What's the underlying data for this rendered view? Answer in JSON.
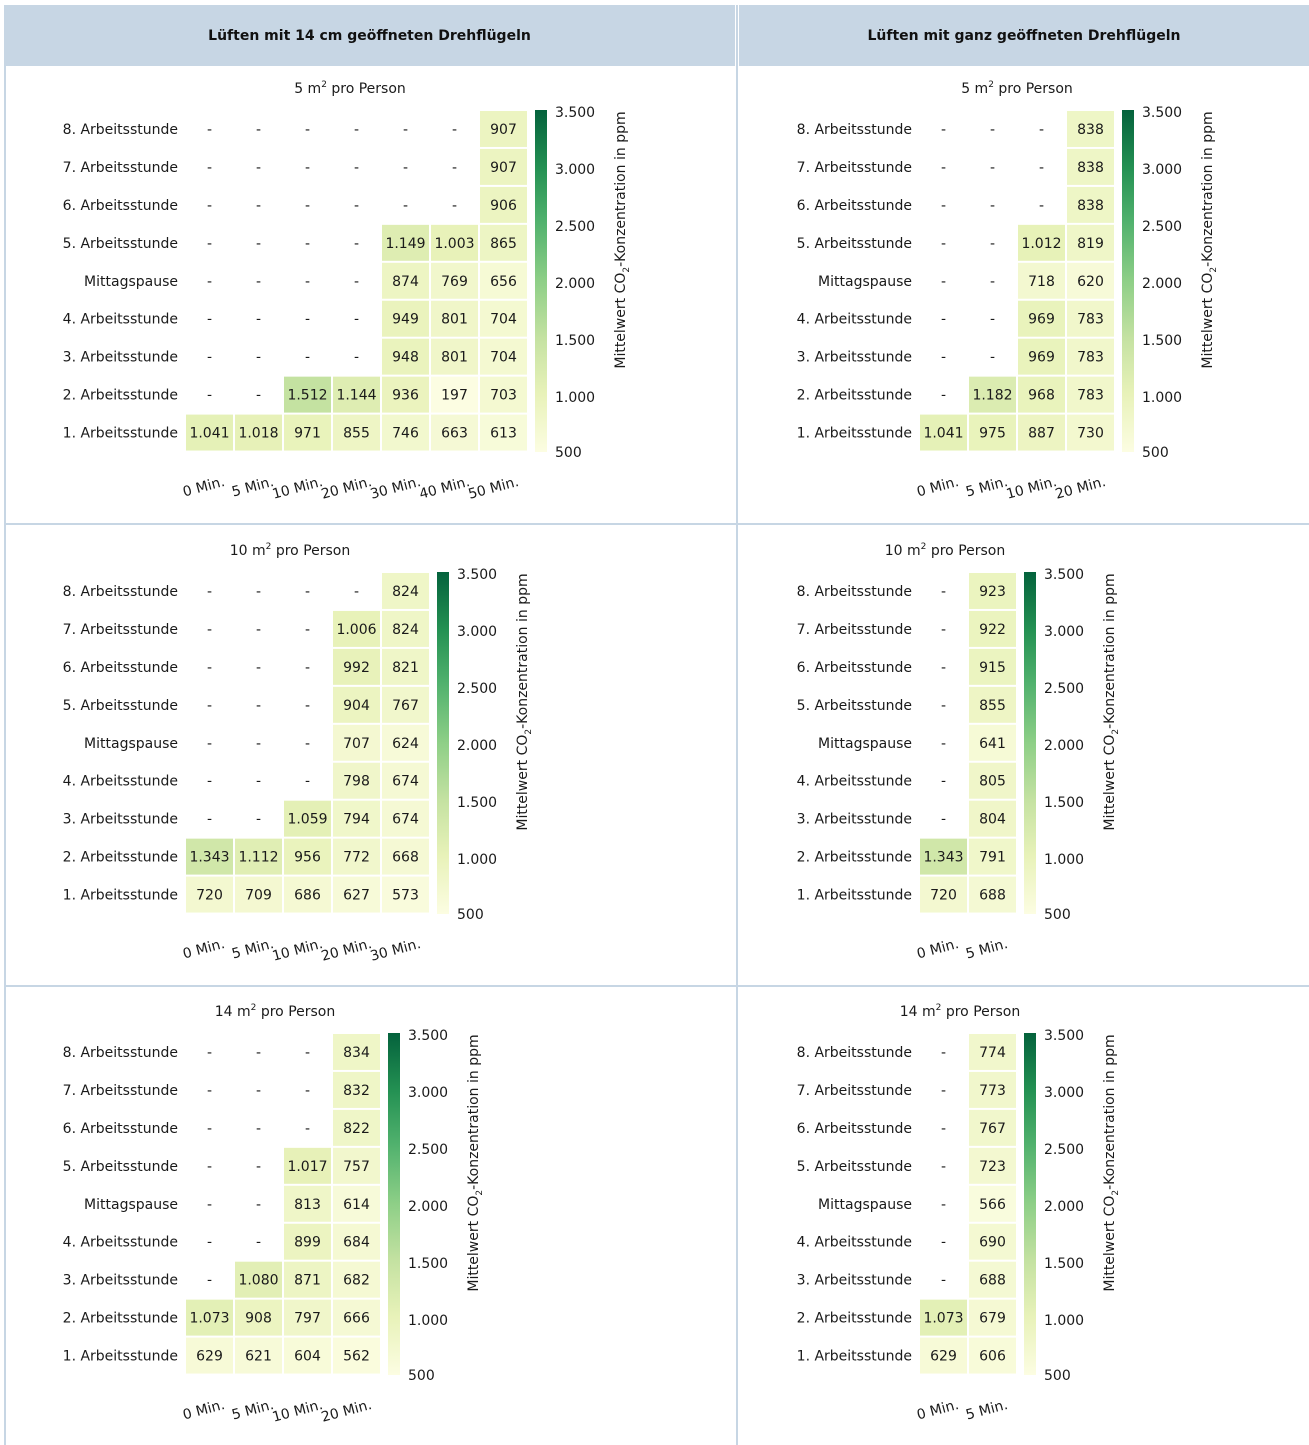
{
  "header": {
    "left": "Lüften mit 14 cm geöffneten Drehflügeln",
    "right": "Lüften mit ganz geöffneten Drehflügeln"
  },
  "row_labels": [
    "8. Arbeitsstunde",
    "7. Arbeitsstunde",
    "6. Arbeitsstunde",
    "5. Arbeitsstunde",
    "Mittagspause",
    "4. Arbeitsstunde",
    "3. Arbeitsstunde",
    "2. Arbeitsstunde",
    "1. Arbeitsstunde"
  ],
  "colorbar": {
    "label": "Mittelwert CO₂-Konzentration in ppm",
    "ticks": [
      3500,
      3000,
      2500,
      2000,
      1500,
      1000,
      500
    ],
    "tick_labels": [
      "3.500",
      "3.000",
      "2.500",
      "2.000",
      "1.500",
      "1.000",
      "500"
    ],
    "range": [
      500,
      3500
    ],
    "colors": [
      "#fcfde2",
      "#e8f2b9",
      "#c5e2a2",
      "#8ecf87",
      "#52b26e",
      "#249153",
      "#04623c"
    ]
  },
  "missing_symbol": "-",
  "chart_data": [
    {
      "type": "heatmap",
      "title": "5 m² pro Person",
      "group": "Lüften mit 14 cm geöffneten Drehflügeln",
      "x": [
        "0 Min.",
        "5 Min.",
        "10 Min.",
        "20 Min.",
        "30 Min.",
        "40 Min.",
        "50 Min."
      ],
      "y": [
        "8. Arbeitsstunde",
        "7. Arbeitsstunde",
        "6. Arbeitsstunde",
        "5. Arbeitsstunde",
        "Mittagspause",
        "4. Arbeitsstunde",
        "3. Arbeitsstunde",
        "2. Arbeitsstunde",
        "1. Arbeitsstunde"
      ],
      "values": [
        [
          null,
          null,
          null,
          null,
          null,
          null,
          907
        ],
        [
          null,
          null,
          null,
          null,
          null,
          null,
          907
        ],
        [
          null,
          null,
          null,
          null,
          null,
          null,
          906
        ],
        [
          null,
          null,
          null,
          null,
          1149,
          1003,
          865
        ],
        [
          null,
          null,
          null,
          null,
          874,
          769,
          656
        ],
        [
          null,
          null,
          null,
          null,
          949,
          801,
          704
        ],
        [
          null,
          null,
          null,
          null,
          948,
          801,
          704
        ],
        [
          null,
          null,
          1512,
          1144,
          936,
          197,
          703
        ],
        [
          1041,
          1018,
          971,
          855,
          746,
          663,
          613
        ]
      ]
    },
    {
      "type": "heatmap",
      "title": "5 m² pro Person",
      "group": "Lüften mit ganz geöffneten Drehflügeln",
      "x": [
        "0 Min.",
        "5 Min.",
        "10 Min.",
        "20 Min."
      ],
      "y": [
        "8. Arbeitsstunde",
        "7. Arbeitsstunde",
        "6. Arbeitsstunde",
        "5. Arbeitsstunde",
        "Mittagspause",
        "4. Arbeitsstunde",
        "3. Arbeitsstunde",
        "2. Arbeitsstunde",
        "1. Arbeitsstunde"
      ],
      "values": [
        [
          null,
          null,
          null,
          838
        ],
        [
          null,
          null,
          null,
          838
        ],
        [
          null,
          null,
          null,
          838
        ],
        [
          null,
          null,
          1012,
          819
        ],
        [
          null,
          null,
          718,
          620
        ],
        [
          null,
          null,
          969,
          783
        ],
        [
          null,
          null,
          969,
          783
        ],
        [
          null,
          1182,
          968,
          783
        ],
        [
          1041,
          975,
          887,
          730
        ]
      ]
    },
    {
      "type": "heatmap",
      "title": "10 m² pro Person",
      "group": "Lüften mit 14 cm geöffneten Drehflügeln",
      "x": [
        "0 Min.",
        "5 Min.",
        "10 Min.",
        "20 Min.",
        "30 Min."
      ],
      "y": [
        "8. Arbeitsstunde",
        "7. Arbeitsstunde",
        "6. Arbeitsstunde",
        "5. Arbeitsstunde",
        "Mittagspause",
        "4. Arbeitsstunde",
        "3. Arbeitsstunde",
        "2. Arbeitsstunde",
        "1. Arbeitsstunde"
      ],
      "values": [
        [
          null,
          null,
          null,
          null,
          824
        ],
        [
          null,
          null,
          null,
          1006,
          824
        ],
        [
          null,
          null,
          null,
          992,
          821
        ],
        [
          null,
          null,
          null,
          904,
          767
        ],
        [
          null,
          null,
          null,
          707,
          624
        ],
        [
          null,
          null,
          null,
          798,
          674
        ],
        [
          null,
          null,
          1059,
          794,
          674
        ],
        [
          1343,
          1112,
          956,
          772,
          668
        ],
        [
          720,
          709,
          686,
          627,
          573
        ]
      ]
    },
    {
      "type": "heatmap",
      "title": "10 m² pro Person",
      "group": "Lüften mit ganz geöffneten Drehflügeln",
      "x": [
        "0 Min.",
        "5 Min."
      ],
      "y": [
        "8. Arbeitsstunde",
        "7. Arbeitsstunde",
        "6. Arbeitsstunde",
        "5. Arbeitsstunde",
        "Mittagspause",
        "4. Arbeitsstunde",
        "3. Arbeitsstunde",
        "2. Arbeitsstunde",
        "1. Arbeitsstunde"
      ],
      "values": [
        [
          null,
          923
        ],
        [
          null,
          922
        ],
        [
          null,
          915
        ],
        [
          null,
          855
        ],
        [
          null,
          641
        ],
        [
          null,
          805
        ],
        [
          null,
          804
        ],
        [
          1343,
          791
        ],
        [
          720,
          688
        ]
      ]
    },
    {
      "type": "heatmap",
      "title": "14 m² pro Person",
      "group": "Lüften mit 14 cm geöffneten Drehflügeln",
      "x": [
        "0 Min.",
        "5 Min.",
        "10 Min.",
        "20 Min."
      ],
      "y": [
        "8. Arbeitsstunde",
        "7. Arbeitsstunde",
        "6. Arbeitsstunde",
        "5. Arbeitsstunde",
        "Mittagspause",
        "4. Arbeitsstunde",
        "3. Arbeitsstunde",
        "2. Arbeitsstunde",
        "1. Arbeitsstunde"
      ],
      "values": [
        [
          null,
          null,
          null,
          834
        ],
        [
          null,
          null,
          null,
          832
        ],
        [
          null,
          null,
          null,
          822
        ],
        [
          null,
          null,
          1017,
          757
        ],
        [
          null,
          null,
          813,
          614
        ],
        [
          null,
          null,
          899,
          684
        ],
        [
          null,
          1080,
          871,
          682
        ],
        [
          1073,
          908,
          797,
          666
        ],
        [
          629,
          621,
          604,
          562
        ]
      ]
    },
    {
      "type": "heatmap",
      "title": "14 m² pro Person",
      "group": "Lüften mit ganz geöffneten Drehflügeln",
      "x": [
        "0 Min.",
        "5 Min."
      ],
      "y": [
        "8. Arbeitsstunde",
        "7. Arbeitsstunde",
        "6. Arbeitsstunde",
        "5. Arbeitsstunde",
        "Mittagspause",
        "4. Arbeitsstunde",
        "3. Arbeitsstunde",
        "2. Arbeitsstunde",
        "1. Arbeitsstunde"
      ],
      "values": [
        [
          null,
          774
        ],
        [
          null,
          773
        ],
        [
          null,
          767
        ],
        [
          null,
          723
        ],
        [
          null,
          566
        ],
        [
          null,
          690
        ],
        [
          null,
          688
        ],
        [
          1073,
          679
        ],
        [
          629,
          606
        ]
      ]
    }
  ]
}
